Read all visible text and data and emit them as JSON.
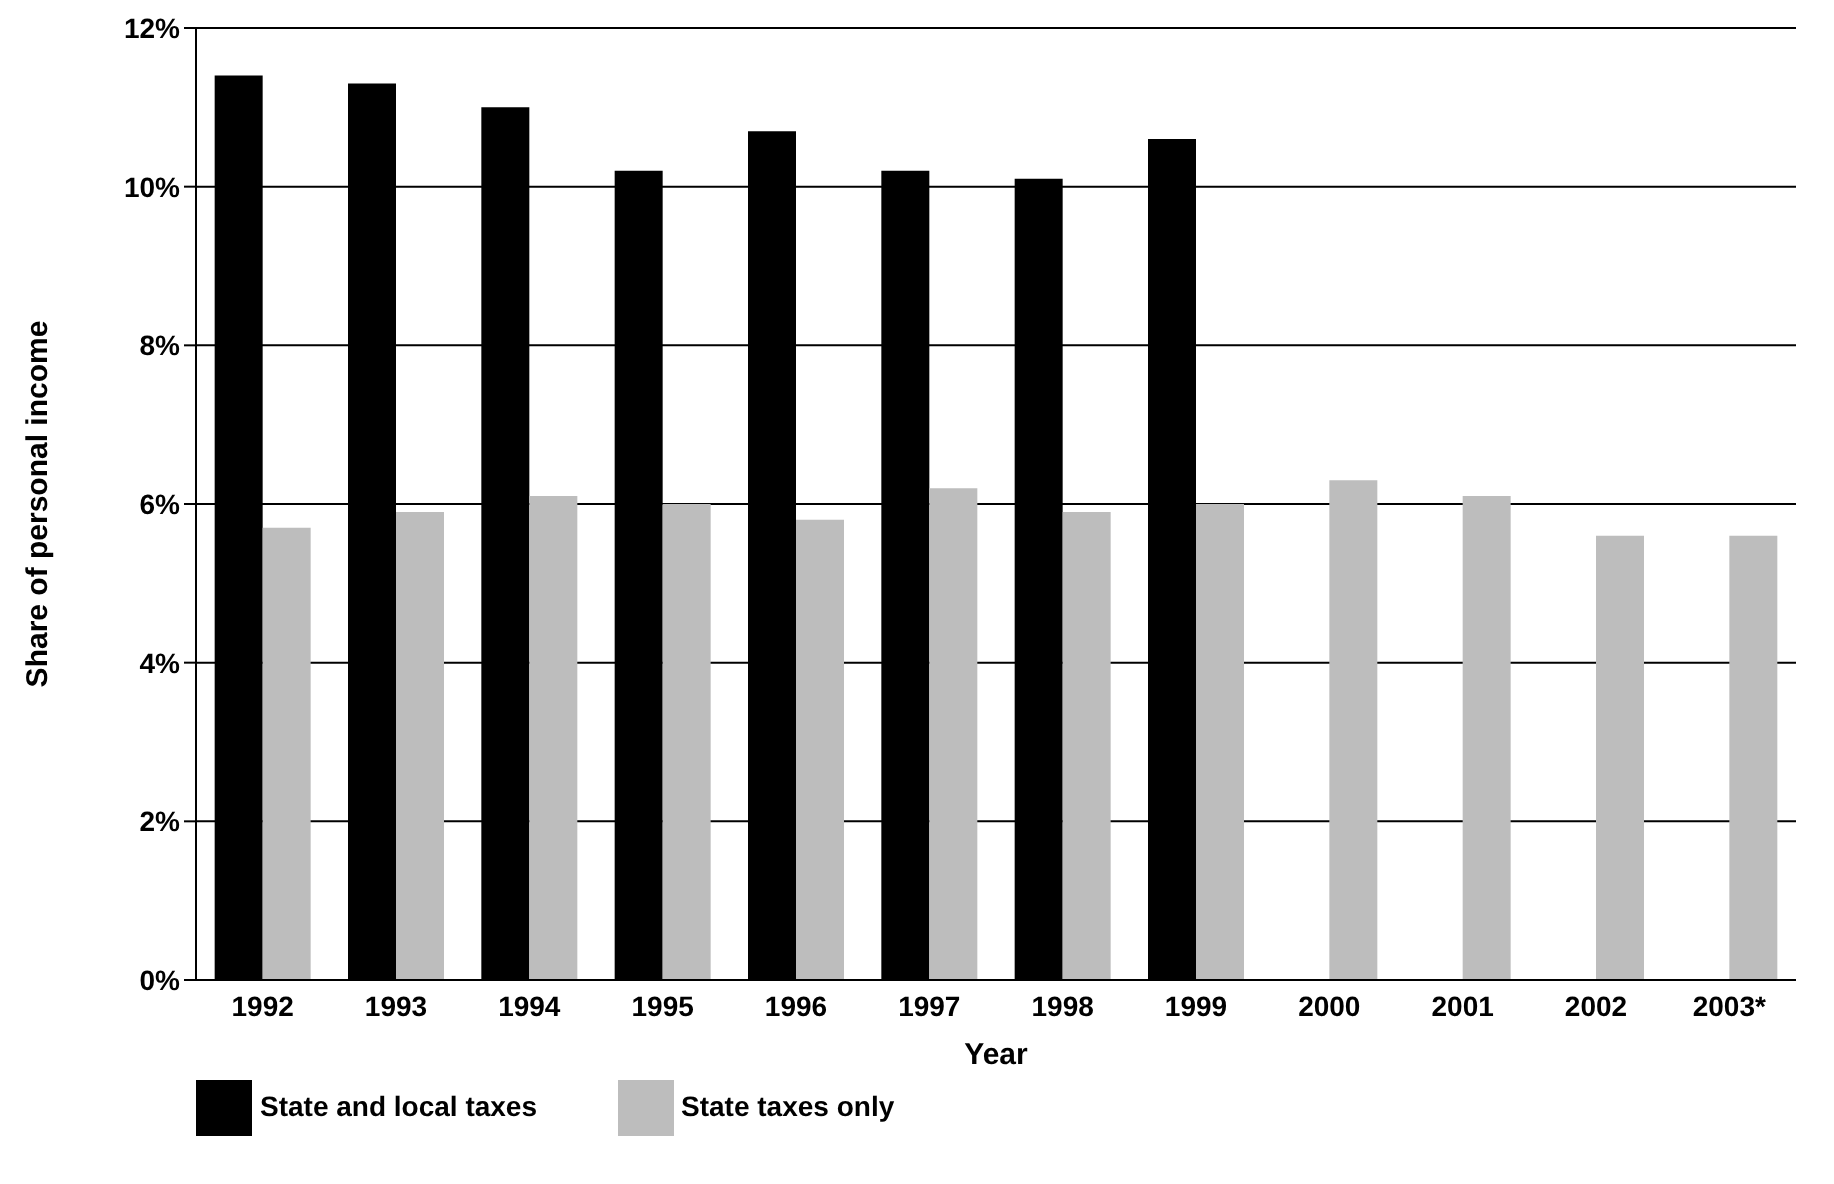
{
  "chart_data": {
    "type": "bar",
    "xlabel": "Year",
    "ylabel": "Share of personal income",
    "categories": [
      "1992",
      "1993",
      "1994",
      "1995",
      "1996",
      "1997",
      "1998",
      "1999",
      "2000",
      "2001",
      "2002",
      "2003*"
    ],
    "series": [
      {
        "name": "State and local taxes",
        "color": "#000000",
        "values": [
          11.4,
          11.3,
          11.0,
          10.2,
          10.7,
          10.2,
          10.1,
          10.6,
          null,
          null,
          null,
          null
        ]
      },
      {
        "name": "State taxes only",
        "color": "#bdbdbd",
        "values": [
          5.7,
          5.9,
          6.1,
          6.0,
          5.8,
          6.2,
          5.9,
          6.0,
          6.3,
          6.1,
          5.6,
          5.6
        ]
      }
    ],
    "ylim": [
      0,
      12
    ],
    "yticks": [
      {
        "value": 0,
        "label": "0%"
      },
      {
        "value": 2,
        "label": "2%"
      },
      {
        "value": 4,
        "label": "4%"
      },
      {
        "value": 6,
        "label": "6%"
      },
      {
        "value": 8,
        "label": "8%"
      },
      {
        "value": 10,
        "label": "10%"
      },
      {
        "value": 12,
        "label": "12%"
      }
    ],
    "grid": "y",
    "legend": "bottom left"
  }
}
